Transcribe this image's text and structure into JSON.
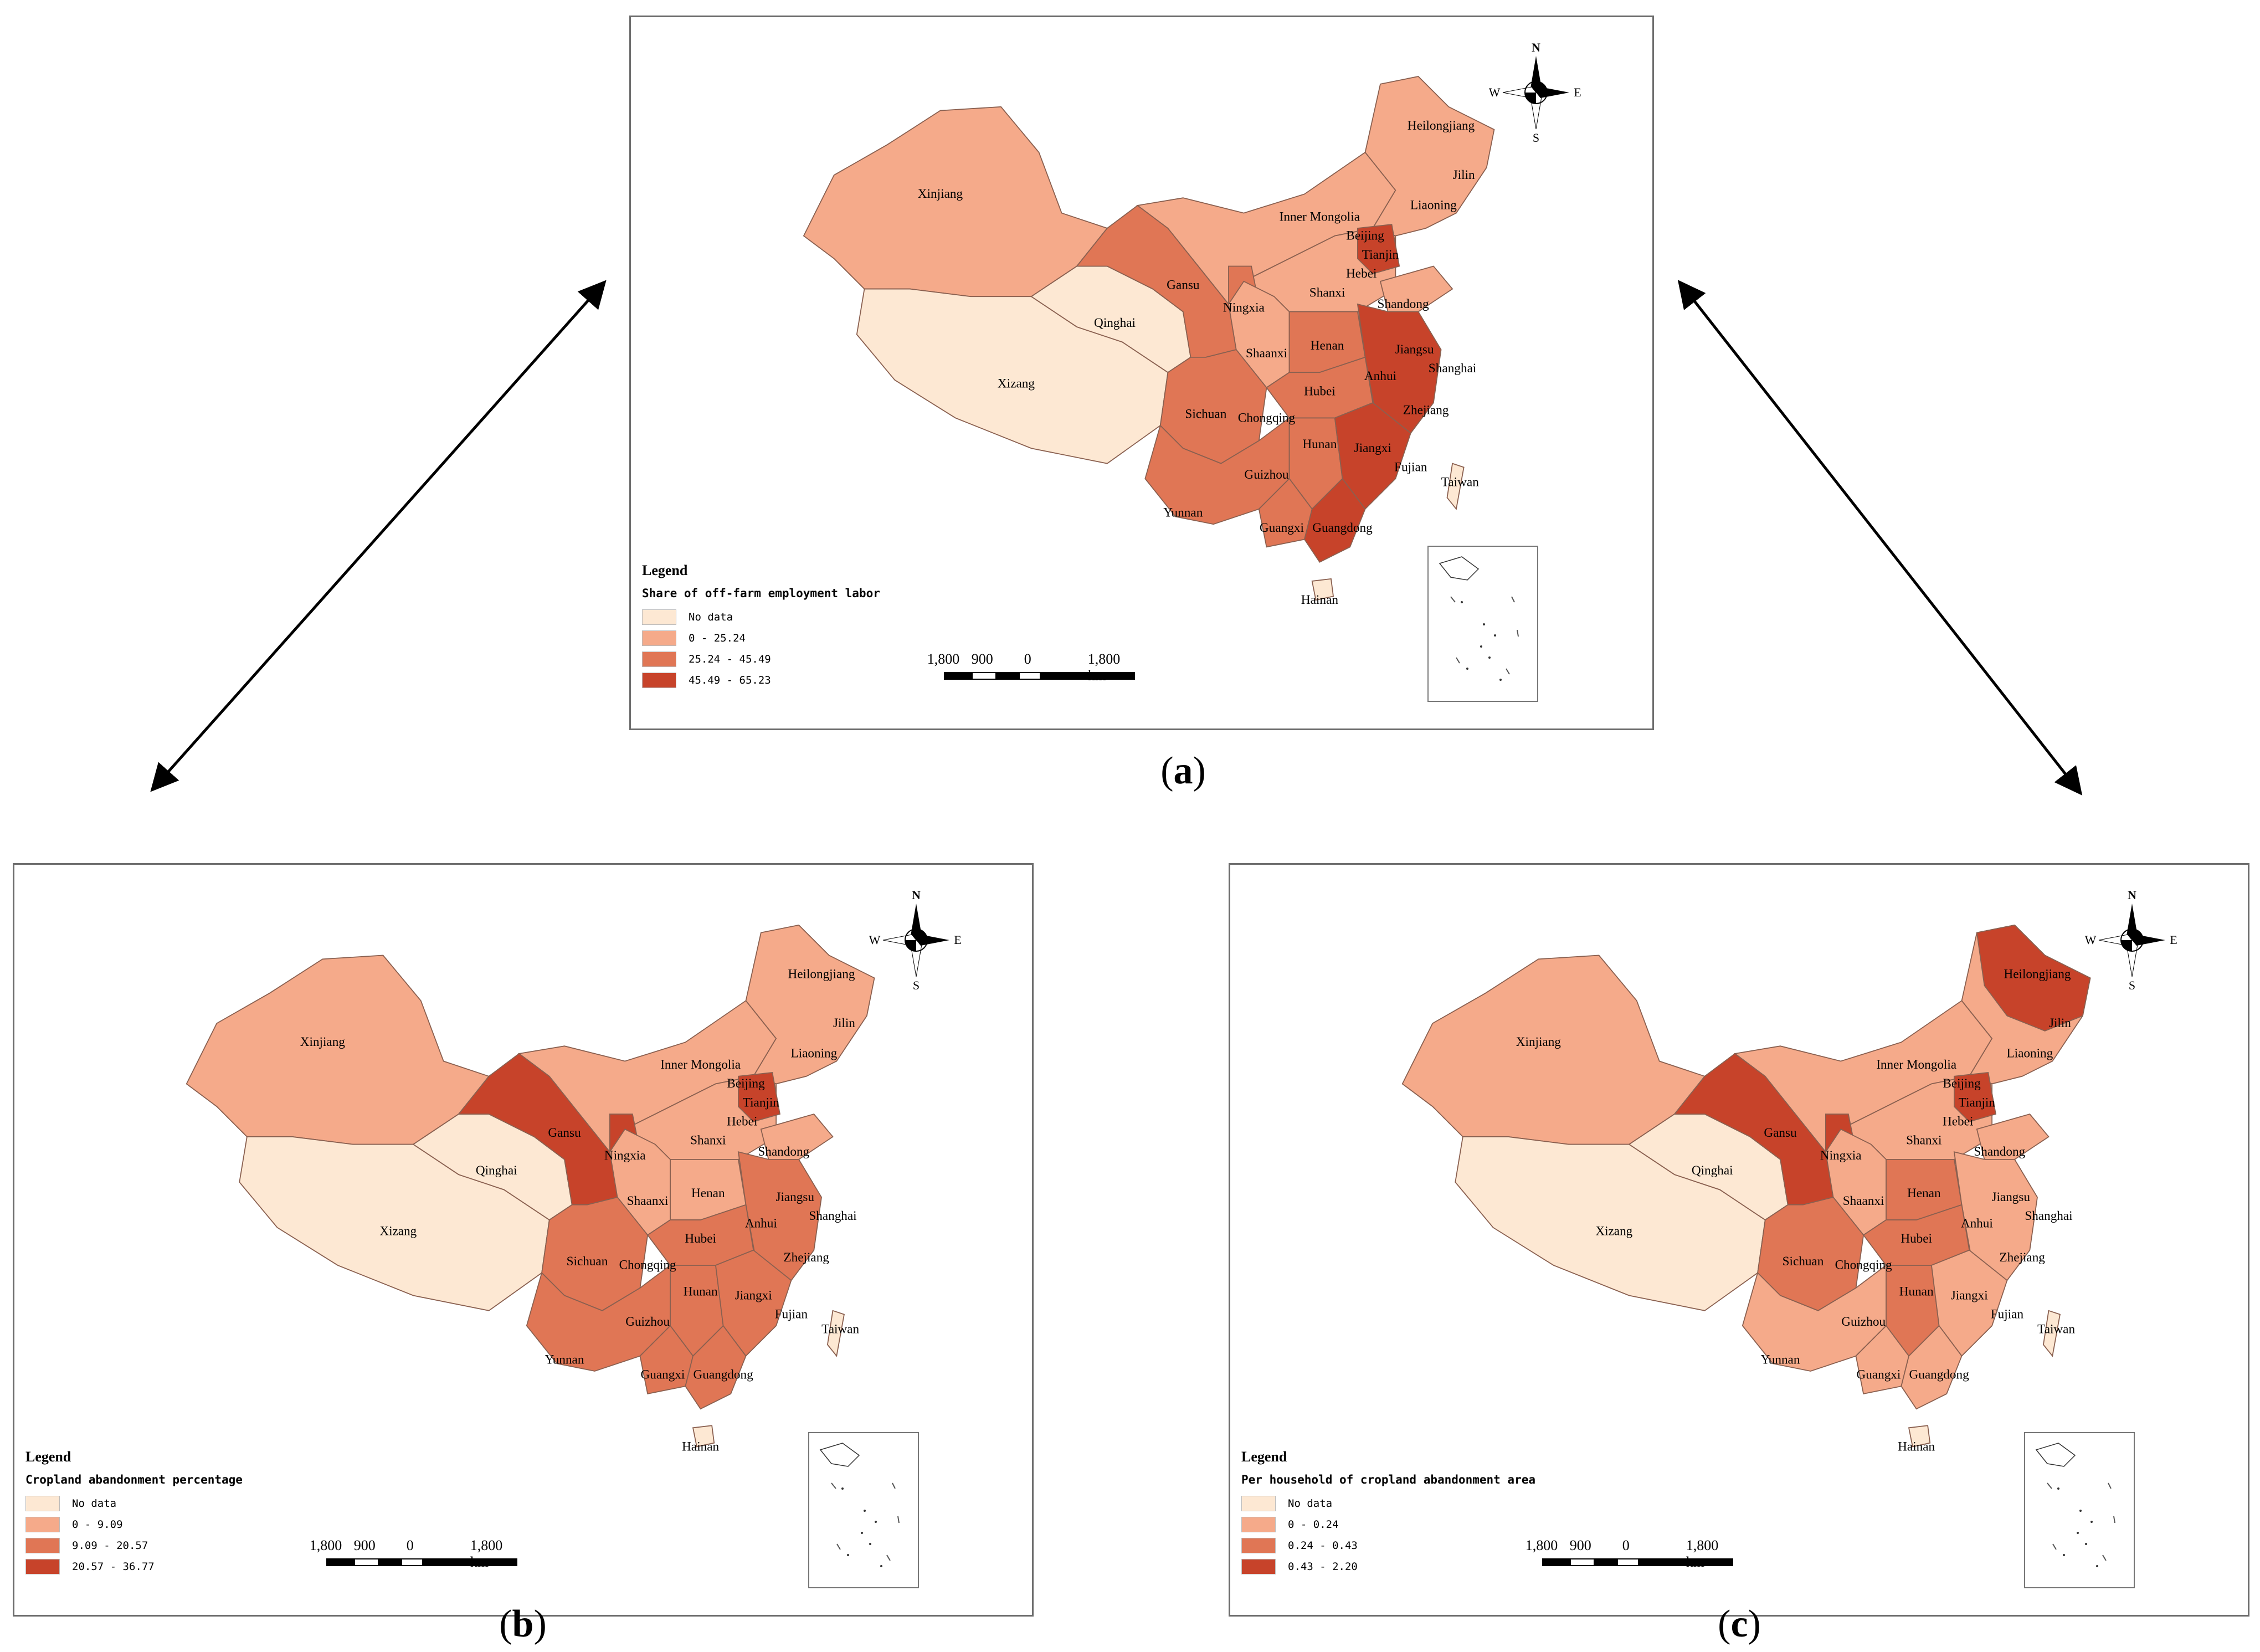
{
  "colors": {
    "no_data": "#FDE8D3",
    "class1": "#F5AA8A",
    "class2": "#E07655",
    "class3": "#C7432A",
    "outline": "#8a6050"
  },
  "panels": [
    {
      "caption": "a",
      "legend": {
        "title": "Legend",
        "subtitle": "Share of off-farm employment labor",
        "items": [
          {
            "label": "No data",
            "color": "#FDE8D3"
          },
          {
            "label": "0 - 25.24",
            "color": "#F5AA8A"
          },
          {
            "label": "25.24 - 45.49",
            "color": "#E07655"
          },
          {
            "label": "45.49 - 65.23",
            "color": "#C7432A"
          }
        ]
      },
      "regions": {
        "xinjiang": "class1",
        "xizang": "no_data",
        "qinghai": "no_data",
        "gansu": "class2",
        "inner_mongolia": "class1",
        "northeast": "class1",
        "north": "class1",
        "beijing": "class3",
        "ningxia": "class2",
        "shaanxi": "class1",
        "henan": "class2",
        "hubei": "class2",
        "southwest": "class2",
        "sichuan": "class2",
        "hunan": "class2",
        "east": "class3",
        "southeast": "class3",
        "guangxi": "class2",
        "guangdong": "class3",
        "shandong": "class1",
        "taiwan": "no_data",
        "hainan": "no_data"
      }
    },
    {
      "caption": "b",
      "legend": {
        "title": "Legend",
        "subtitle": "Cropland abandonment percentage",
        "items": [
          {
            "label": "No data",
            "color": "#FDE8D3"
          },
          {
            "label": "0 - 9.09",
            "color": "#F5AA8A"
          },
          {
            "label": "9.09 - 20.57",
            "color": "#E07655"
          },
          {
            "label": "20.57 - 36.77",
            "color": "#C7432A"
          }
        ]
      },
      "regions": {
        "xinjiang": "class1",
        "xizang": "no_data",
        "qinghai": "no_data",
        "gansu": "class3",
        "inner_mongolia": "class1",
        "northeast": "class1",
        "north": "class1",
        "beijing": "class3",
        "ningxia": "class3",
        "shaanxi": "class1",
        "henan": "class1",
        "hubei": "class2",
        "southwest": "class2",
        "sichuan": "class2",
        "hunan": "class2",
        "east": "class2",
        "southeast": "class2",
        "guangxi": "class2",
        "guangdong": "class2",
        "shandong": "class1",
        "taiwan": "no_data",
        "hainan": "no_data"
      }
    },
    {
      "caption": "c",
      "legend": {
        "title": "Legend",
        "subtitle": "Per household of cropland abandonment area",
        "items": [
          {
            "label": "No data",
            "color": "#FDE8D3"
          },
          {
            "label": "0 - 0.24",
            "color": "#F5AA8A"
          },
          {
            "label": "0.24 - 0.43",
            "color": "#E07655"
          },
          {
            "label": "0.43 - 2.20",
            "color": "#C7432A"
          }
        ]
      },
      "regions": {
        "xinjiang": "class1",
        "xizang": "no_data",
        "qinghai": "no_data",
        "gansu": "class3",
        "inner_mongolia": "class1",
        "northeast": "class1",
        "heilongjiang": "class3",
        "north": "class1",
        "beijing": "class3",
        "ningxia": "class3",
        "shaanxi": "class1",
        "henan": "class2",
        "hubei": "class2",
        "southwest": "class1",
        "sichuan": "class2",
        "hunan": "class2",
        "east": "class1",
        "southeast": "class1",
        "guangxi": "class1",
        "guangdong": "class1",
        "shandong": "class1",
        "taiwan": "no_data",
        "hainan": "no_data"
      }
    }
  ],
  "province_labels": [
    "Heilongjiang",
    "Jilin",
    "Liaoning",
    "Xinjiang",
    "Inner Mongolia",
    "Beijing",
    "Tianjin",
    "Hebei",
    "Gansu",
    "Ningxia",
    "Shanxi",
    "Shandong",
    "Qinghai",
    "Shaanxi",
    "Henan",
    "Jiangsu",
    "Shanghai",
    "Anhui",
    "Xizang",
    "Hubei",
    "Sichuan",
    "Chongqing",
    "Zhejiang",
    "Hunan",
    "Jiangxi",
    "Fujian",
    "Guizhou",
    "Yunnan",
    "Guangxi",
    "Guangdong",
    "Taiwan",
    "Hainan"
  ],
  "compass": {
    "n": "N",
    "s": "S",
    "e": "E",
    "w": "W"
  },
  "scale": {
    "t1": "1,800",
    "t2": "900",
    "t3": "0",
    "t4": "1,800 km"
  }
}
